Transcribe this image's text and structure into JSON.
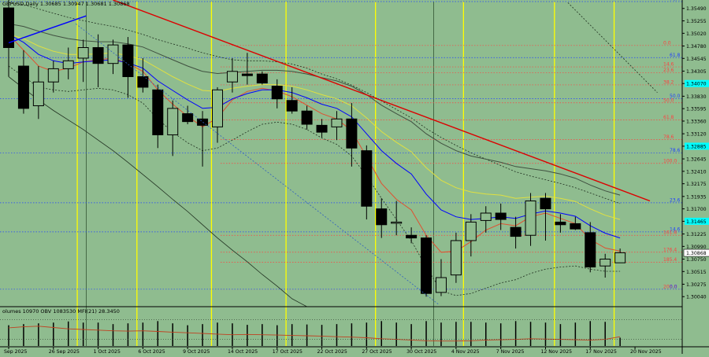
{
  "header": {
    "symbol_line": "GBPUSD,Daily  1.30685 1.30947 1.30681 1.30868"
  },
  "indicator_header": "olumes 10970  OBV 1083530  MFI(21) 28.3450",
  "colors": {
    "background": "#8fbc8f",
    "bull": "#8fbc8f",
    "bear": "#000000",
    "trendline": "#dd0000",
    "blue_line": "#0000ff",
    "session": "#ffff00",
    "fib_red": "#ff4040",
    "fib_blue": "#2040ff",
    "price_highlight": "#00ffff"
  },
  "chart_data": {
    "type": "candlestick",
    "title": "GBPUSD,Daily",
    "ohlc_latest": {
      "open": 1.30685,
      "high": 1.30947,
      "low": 1.30681,
      "close": 1.30868
    },
    "current_price_label": "1.30868",
    "ylim": [
      1.2988,
      1.3562
    ],
    "y_ticks": [
      "1.35490",
      "1.35255",
      "1.35020",
      "1.34780",
      "1.34545",
      "1.34305",
      "1.34070",
      "1.33830",
      "1.33595",
      "1.33360",
      "1.33120",
      "1.32885",
      "1.32645",
      "1.32410",
      "1.32175",
      "1.31935",
      "1.31700",
      "1.31465",
      "1.31225",
      "1.30990",
      "1.30750",
      "1.30515",
      "1.30275",
      "1.30040"
    ],
    "highlighted_ticks": [
      "1.34070",
      "1.32885",
      "1.31465"
    ],
    "x_labels": [
      "Sep 2025",
      "26 Sep 2025",
      "1 Oct 2025",
      "6 Oct 2025",
      "9 Oct 2025",
      "14 Oct 2025",
      "17 Oct 2025",
      "22 Oct 2025",
      "27 Oct 2025",
      "30 Oct 2025",
      "4 Nov 2025",
      "7 Nov 2025",
      "12 Nov 2025",
      "17 Nov 2025",
      "20 Nov 2025"
    ],
    "x_label_bars": [
      0,
      3,
      6,
      9,
      12,
      15,
      18,
      21,
      24,
      27,
      30,
      33,
      36,
      39,
      42
    ],
    "candles": [
      {
        "o": 1.355,
        "h": 1.3565,
        "l": 1.342,
        "c": 1.3475
      },
      {
        "o": 1.344,
        "h": 1.347,
        "l": 1.335,
        "c": 1.336
      },
      {
        "o": 1.3365,
        "h": 1.344,
        "l": 1.334,
        "c": 1.341
      },
      {
        "o": 1.341,
        "h": 1.345,
        "l": 1.339,
        "c": 1.3435
      },
      {
        "o": 1.3435,
        "h": 1.3475,
        "l": 1.3415,
        "c": 1.345
      },
      {
        "o": 1.3455,
        "h": 1.349,
        "l": 1.341,
        "c": 1.3475
      },
      {
        "o": 1.3475,
        "h": 1.35,
        "l": 1.34,
        "c": 1.3445
      },
      {
        "o": 1.3445,
        "h": 1.349,
        "l": 1.3425,
        "c": 1.348
      },
      {
        "o": 1.348,
        "h": 1.3495,
        "l": 1.338,
        "c": 1.342
      },
      {
        "o": 1.342,
        "h": 1.3455,
        "l": 1.339,
        "c": 1.34
      },
      {
        "o": 1.3395,
        "h": 1.3405,
        "l": 1.3285,
        "c": 1.331
      },
      {
        "o": 1.331,
        "h": 1.3375,
        "l": 1.327,
        "c": 1.336
      },
      {
        "o": 1.335,
        "h": 1.3365,
        "l": 1.333,
        "c": 1.3335
      },
      {
        "o": 1.334,
        "h": 1.3355,
        "l": 1.325,
        "c": 1.3328
      },
      {
        "o": 1.3325,
        "h": 1.34,
        "l": 1.3295,
        "c": 1.3395
      },
      {
        "o": 1.341,
        "h": 1.3455,
        "l": 1.339,
        "c": 1.343
      },
      {
        "o": 1.3425,
        "h": 1.3465,
        "l": 1.3405,
        "c": 1.3422
      },
      {
        "o": 1.3425,
        "h": 1.343,
        "l": 1.3405,
        "c": 1.3408
      },
      {
        "o": 1.3402,
        "h": 1.3415,
        "l": 1.336,
        "c": 1.3378
      },
      {
        "o": 1.3375,
        "h": 1.34,
        "l": 1.335,
        "c": 1.3355
      },
      {
        "o": 1.3355,
        "h": 1.3365,
        "l": 1.332,
        "c": 1.333
      },
      {
        "o": 1.3328,
        "h": 1.334,
        "l": 1.3305,
        "c": 1.3315
      },
      {
        "o": 1.3325,
        "h": 1.3355,
        "l": 1.33,
        "c": 1.334
      },
      {
        "o": 1.334,
        "h": 1.337,
        "l": 1.325,
        "c": 1.3285
      },
      {
        "o": 1.328,
        "h": 1.329,
        "l": 1.315,
        "c": 1.3175
      },
      {
        "o": 1.317,
        "h": 1.319,
        "l": 1.3115,
        "c": 1.314
      },
      {
        "o": 1.3145,
        "h": 1.3185,
        "l": 1.312,
        "c": 1.3145
      },
      {
        "o": 1.312,
        "h": 1.3135,
        "l": 1.3105,
        "c": 1.3115
      },
      {
        "o": 1.3115,
        "h": 1.312,
        "l": 1.3004,
        "c": 1.301
      },
      {
        "o": 1.3012,
        "h": 1.3075,
        "l": 1.3005,
        "c": 1.304
      },
      {
        "o": 1.3045,
        "h": 1.3125,
        "l": 1.303,
        "c": 1.311
      },
      {
        "o": 1.311,
        "h": 1.316,
        "l": 1.308,
        "c": 1.3145
      },
      {
        "o": 1.3148,
        "h": 1.3175,
        "l": 1.3125,
        "c": 1.3162
      },
      {
        "o": 1.3162,
        "h": 1.318,
        "l": 1.313,
        "c": 1.315
      },
      {
        "o": 1.3135,
        "h": 1.3155,
        "l": 1.3095,
        "c": 1.3118
      },
      {
        "o": 1.312,
        "h": 1.32,
        "l": 1.31,
        "c": 1.3185
      },
      {
        "o": 1.319,
        "h": 1.32,
        "l": 1.311,
        "c": 1.317
      },
      {
        "o": 1.3145,
        "h": 1.316,
        "l": 1.3125,
        "c": 1.314
      },
      {
        "o": 1.3142,
        "h": 1.3155,
        "l": 1.313,
        "c": 1.3132
      },
      {
        "o": 1.3125,
        "h": 1.3145,
        "l": 1.305,
        "c": 1.306
      },
      {
        "o": 1.3062,
        "h": 1.3085,
        "l": 1.304,
        "c": 1.3075
      },
      {
        "o": 1.3068,
        "h": 1.3095,
        "l": 1.3068,
        "c": 1.3087
      }
    ],
    "fib_levels": [
      {
        "label": "0.0",
        "price": 1.3479,
        "color": "red"
      },
      {
        "label": "61.8",
        "price": 1.3456,
        "color": "blue"
      },
      {
        "label": "14.6",
        "price": 1.34385,
        "color": "red"
      },
      {
        "label": "23.6",
        "price": 1.34275,
        "color": "red"
      },
      {
        "label": "38.2",
        "price": 1.34045,
        "color": "red"
      },
      {
        "label": "50.0",
        "price": 1.33785,
        "color": "blue"
      },
      {
        "label": "50.0",
        "price": 1.33705,
        "color": "red"
      },
      {
        "label": "61.8",
        "price": 1.3338,
        "color": "red"
      },
      {
        "label": "78.6",
        "price": 1.3301,
        "color": "red"
      },
      {
        "label": "78.6",
        "price": 1.3276,
        "color": "blue"
      },
      {
        "label": "100.0",
        "price": 1.3256,
        "color": "red"
      },
      {
        "label": "23.6",
        "price": 1.31815,
        "color": "blue"
      },
      {
        "label": "14.6",
        "price": 1.31265,
        "color": "blue"
      },
      {
        "label": "161.8",
        "price": 1.312,
        "color": "red"
      },
      {
        "label": "176.4",
        "price": 1.3088,
        "color": "red"
      },
      {
        "label": "185.4",
        "price": 1.3069,
        "color": "red"
      },
      {
        "label": "200.0",
        "price": 1.3018,
        "color": "red"
      },
      {
        "label": "0.0",
        "price": 1.3018,
        "color": "blue"
      },
      {
        "label": "76.4",
        "price": 1.3562,
        "color": "blue"
      }
    ],
    "session_bars": [
      4.6,
      8.6,
      13.6,
      18.6,
      24.6,
      30.5,
      36.6,
      40.6,
      45.4
    ],
    "trendline": {
      "from": {
        "bar": 7.0,
        "price": 1.3565
      },
      "to": {
        "bar": 43.0,
        "price": 1.3185
      }
    },
    "blue_line": {
      "from": {
        "bar": 0.0,
        "price": 1.3484
      },
      "to": {
        "bar": 5.2,
        "price": 1.3535
      }
    },
    "moving_averages": [
      {
        "name": "red",
        "color": "#e05030",
        "values": [
          1.35,
          1.347,
          1.344,
          1.343,
          1.3436,
          1.3448,
          1.3452,
          1.3455,
          1.3445,
          1.343,
          1.3395,
          1.3368,
          1.3345,
          1.3325,
          1.3342,
          1.3376,
          1.3392,
          1.3398,
          1.3393,
          1.3382,
          1.3366,
          1.335,
          1.334,
          1.3318,
          1.3268,
          1.3218,
          1.3188,
          1.3168,
          1.312,
          1.3088,
          1.309,
          1.3108,
          1.313,
          1.3142,
          1.3138,
          1.3155,
          1.3162,
          1.3152,
          1.3142,
          1.3112,
          1.3096,
          1.309
        ]
      },
      {
        "name": "blue",
        "color": "#0000ff",
        "values": [
          1.35,
          1.3485,
          1.3462,
          1.345,
          1.3445,
          1.3448,
          1.345,
          1.3452,
          1.3446,
          1.3436,
          1.3412,
          1.3394,
          1.3376,
          1.336,
          1.3362,
          1.3378,
          1.3388,
          1.3395,
          1.3395,
          1.339,
          1.338,
          1.3368,
          1.336,
          1.3344,
          1.3312,
          1.328,
          1.3256,
          1.3236,
          1.3198,
          1.3168,
          1.3155,
          1.315,
          1.3152,
          1.3155,
          1.3152,
          1.316,
          1.3166,
          1.3162,
          1.3156,
          1.3138,
          1.3124,
          1.3115
        ]
      },
      {
        "name": "yellow",
        "color": "#e0e040",
        "values": [
          1.35,
          1.3492,
          1.3478,
          1.3468,
          1.3462,
          1.3462,
          1.3463,
          1.3465,
          1.346,
          1.3452,
          1.3436,
          1.342,
          1.3406,
          1.3394,
          1.3392,
          1.3398,
          1.3402,
          1.3405,
          1.3405,
          1.3402,
          1.3395,
          1.3386,
          1.3378,
          1.3365,
          1.3342,
          1.3316,
          1.3296,
          1.3278,
          1.3248,
          1.3224,
          1.321,
          1.3202,
          1.3198,
          1.3196,
          1.319,
          1.3192,
          1.3194,
          1.319,
          1.3184,
          1.317,
          1.3158,
          1.315
        ]
      },
      {
        "name": "gray",
        "color": "#405040",
        "values": [
          1.352,
          1.3515,
          1.3506,
          1.3498,
          1.3492,
          1.3488,
          1.3486,
          1.3486,
          1.3482,
          1.3476,
          1.3464,
          1.3452,
          1.344,
          1.343,
          1.3426,
          1.3428,
          1.343,
          1.3432,
          1.3432,
          1.343,
          1.3425,
          1.3418,
          1.3412,
          1.3402,
          1.3386,
          1.3366,
          1.335,
          1.3335,
          1.3312,
          1.3294,
          1.328,
          1.327,
          1.3264,
          1.3258,
          1.325,
          1.3246,
          1.3242,
          1.3236,
          1.3228,
          1.3215,
          1.3204,
          1.3196
        ]
      }
    ],
    "bands": {
      "upper": [
        1.356,
        1.3556,
        1.3548,
        1.354,
        1.3532,
        1.3526,
        1.352,
        1.3515,
        1.3508,
        1.35,
        1.349,
        1.3482,
        1.3474,
        1.3465,
        1.3458,
        1.3452,
        1.345,
        1.345,
        1.3448,
        1.3444,
        1.3436,
        1.3425,
        1.3416,
        1.3404,
        1.339,
        1.3374,
        1.3358,
        1.3342,
        1.3322,
        1.3305,
        1.329,
        1.3276,
        1.3264,
        1.3252,
        1.324,
        1.3232,
        1.3225,
        1.3218,
        1.321,
        1.32,
        1.319,
        1.318
      ],
      "lower": [
        1.344,
        1.342,
        1.34,
        1.3395,
        1.3392,
        1.3395,
        1.3398,
        1.3395,
        1.3386,
        1.337,
        1.334,
        1.3315,
        1.3295,
        1.328,
        1.3285,
        1.33,
        1.3316,
        1.333,
        1.3334,
        1.333,
        1.332,
        1.3304,
        1.3292,
        1.327,
        1.3232,
        1.319,
        1.315,
        1.311,
        1.306,
        1.3015,
        1.3006,
        1.301,
        1.302,
        1.303,
        1.3036,
        1.3048,
        1.3056,
        1.306,
        1.3062,
        1.3056,
        1.3052,
        1.3052
      ],
      "lower_outer": [
        1.342,
        1.3398,
        1.3376,
        1.3356,
        1.3338,
        1.332,
        1.33,
        1.328,
        1.3258,
        1.3235,
        1.3212,
        1.3188,
        1.3165,
        1.314,
        1.3115,
        1.3092,
        1.307,
        1.3046,
        1.3024,
        1.3,
        1.2985,
        1.2985,
        1.2985,
        1.2985,
        1.2985,
        1.2985,
        1.2985,
        1.2985,
        1.2985,
        1.2985,
        1.2985,
        1.2985,
        1.2985,
        1.2985,
        1.2985,
        1.2985,
        1.2985,
        1.2985,
        1.2985,
        1.2985,
        1.2985,
        1.2985
      ]
    },
    "indicator": {
      "yticks": [
        "68453",
        "80",
        "20",
        "0"
      ],
      "volumes": [
        0.55,
        0.58,
        0.6,
        0.62,
        0.65,
        0.62,
        0.62,
        0.58,
        0.6,
        0.62,
        0.66,
        0.6,
        0.55,
        0.58,
        0.62,
        0.6,
        0.56,
        0.58,
        0.55,
        0.58,
        0.57,
        0.56,
        0.58,
        0.6,
        0.62,
        0.66,
        0.62,
        0.58,
        0.66,
        0.62,
        0.64,
        0.64,
        0.62,
        0.6,
        0.66,
        0.64,
        0.62,
        0.58,
        0.62,
        0.66,
        0.64,
        0.22
      ],
      "mfi": [
        55,
        58,
        60,
        56,
        52,
        50,
        48,
        46,
        45,
        46,
        44,
        42,
        40,
        38,
        36,
        34,
        35,
        34,
        33,
        32,
        31,
        30,
        28,
        27,
        25,
        22,
        20,
        18,
        16,
        15,
        15,
        16,
        18,
        19,
        20,
        22,
        21,
        20,
        19,
        18,
        20,
        28
      ]
    }
  }
}
